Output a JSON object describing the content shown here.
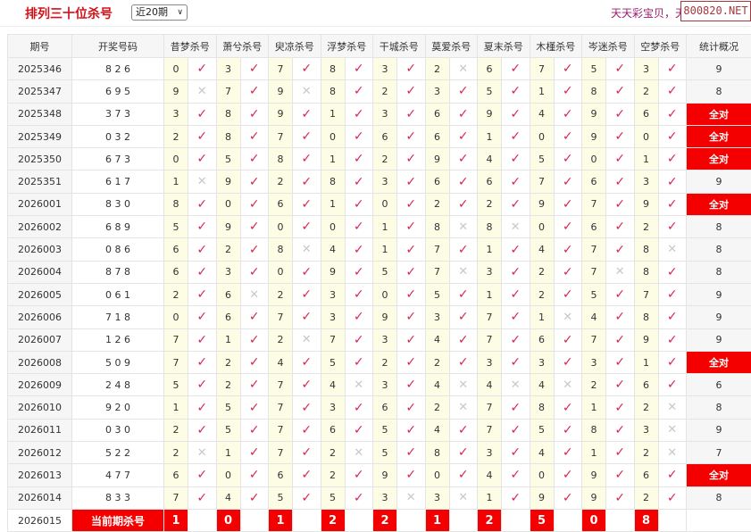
{
  "header": {
    "title": "排列三十位杀号",
    "period_select": "近20期",
    "promo_text": "天天彩宝贝，天天",
    "brand": "800820.NET"
  },
  "table": {
    "col_issue": "期号",
    "col_draw": "开奖号码",
    "col_stat": "统计概况",
    "experts": [
      "昔梦杀号",
      "萧兮杀号",
      "臾凉杀号",
      "浮梦杀号",
      "干城杀号",
      "莫爱杀号",
      "夏末杀号",
      "木槿杀号",
      "岑迷杀号",
      "空梦杀号"
    ],
    "rows": [
      {
        "issue": "2025346",
        "draw": "8 2 6",
        "picks": [
          0,
          3,
          7,
          8,
          3,
          2,
          6,
          7,
          5,
          3
        ],
        "hits": "vvvvvxvvvv",
        "stat": "9"
      },
      {
        "issue": "2025347",
        "draw": "6 9 5",
        "picks": [
          9,
          7,
          9,
          8,
          2,
          3,
          5,
          1,
          8,
          2
        ],
        "hits": "xvxvvvvvvv",
        "stat": "8"
      },
      {
        "issue": "2025348",
        "draw": "3 7 3",
        "picks": [
          3,
          8,
          9,
          1,
          3,
          6,
          9,
          4,
          9,
          6
        ],
        "hits": "vvvvvvvvvv",
        "stat": "全对"
      },
      {
        "issue": "2025349",
        "draw": "0 3 2",
        "picks": [
          2,
          8,
          7,
          0,
          6,
          6,
          1,
          0,
          9,
          0
        ],
        "hits": "vvvvvvvvvv",
        "stat": "全对"
      },
      {
        "issue": "2025350",
        "draw": "6 7 3",
        "picks": [
          0,
          5,
          8,
          1,
          2,
          9,
          4,
          5,
          0,
          1
        ],
        "hits": "vvvvvvvvvv",
        "stat": "全对"
      },
      {
        "issue": "2025351",
        "draw": "6 1 7",
        "picks": [
          1,
          9,
          2,
          8,
          3,
          6,
          6,
          7,
          6,
          3
        ],
        "hits": "xvvvvvvvvv",
        "stat": "9"
      },
      {
        "issue": "2026001",
        "draw": "8 3 0",
        "picks": [
          8,
          0,
          6,
          1,
          0,
          2,
          2,
          9,
          7,
          9
        ],
        "hits": "vvvvvvvvvv",
        "stat": "全对"
      },
      {
        "issue": "2026002",
        "draw": "6 8 9",
        "picks": [
          5,
          9,
          0,
          0,
          1,
          8,
          8,
          0,
          6,
          2
        ],
        "hits": "vvvvvxxvvv",
        "stat": "8"
      },
      {
        "issue": "2026003",
        "draw": "0 8 6",
        "picks": [
          6,
          2,
          8,
          4,
          1,
          7,
          1,
          4,
          7,
          8
        ],
        "hits": "vvxvvvvvvx",
        "stat": "8"
      },
      {
        "issue": "2026004",
        "draw": "8 7 8",
        "picks": [
          6,
          3,
          0,
          9,
          5,
          7,
          3,
          2,
          7,
          8
        ],
        "hits": "vvvvvxvvxv",
        "stat": "8"
      },
      {
        "issue": "2026005",
        "draw": "0 6 1",
        "picks": [
          2,
          6,
          2,
          3,
          0,
          5,
          1,
          2,
          5,
          7
        ],
        "hits": "vxvvvvvvvv",
        "stat": "9"
      },
      {
        "issue": "2026006",
        "draw": "7 1 8",
        "picks": [
          0,
          6,
          7,
          3,
          9,
          3,
          7,
          1,
          4,
          8
        ],
        "hits": "vvvvvvvxvv",
        "stat": "9"
      },
      {
        "issue": "2026007",
        "draw": "1 2 6",
        "picks": [
          7,
          1,
          2,
          7,
          3,
          4,
          7,
          6,
          7,
          9
        ],
        "hits": "vvxvvvvvvv",
        "stat": "9"
      },
      {
        "issue": "2026008",
        "draw": "5 0 9",
        "picks": [
          7,
          2,
          4,
          5,
          2,
          2,
          3,
          3,
          3,
          1
        ],
        "hits": "vvvvvvvvvv",
        "stat": "全对"
      },
      {
        "issue": "2026009",
        "draw": "2 4 8",
        "picks": [
          5,
          2,
          7,
          4,
          3,
          4,
          4,
          4,
          2,
          6
        ],
        "hits": "vvvxvxxxvv",
        "stat": "6"
      },
      {
        "issue": "2026010",
        "draw": "9 2 0",
        "picks": [
          1,
          5,
          7,
          3,
          6,
          2,
          7,
          8,
          1,
          2
        ],
        "hits": "vvvvvxvvvx",
        "stat": "8"
      },
      {
        "issue": "2026011",
        "draw": "0 3 0",
        "picks": [
          2,
          5,
          7,
          6,
          5,
          4,
          7,
          5,
          8,
          3
        ],
        "hits": "vvvvvvvvvx",
        "stat": "9"
      },
      {
        "issue": "2026012",
        "draw": "5 2 2",
        "picks": [
          2,
          1,
          7,
          2,
          5,
          8,
          3,
          4,
          1,
          2
        ],
        "hits": "xvvxvvvvvx",
        "stat": "7"
      },
      {
        "issue": "2026013",
        "draw": "4 7 7",
        "picks": [
          6,
          0,
          6,
          2,
          9,
          0,
          4,
          0,
          9,
          6
        ],
        "hits": "vvvvvvvvvv",
        "stat": "全对"
      },
      {
        "issue": "2026014",
        "draw": "8 3 3",
        "picks": [
          7,
          4,
          5,
          5,
          3,
          3,
          1,
          9,
          9,
          2
        ],
        "hits": "vvvvxxvvvv",
        "stat": "8"
      }
    ],
    "current": {
      "issue": "2026015",
      "label": "当前期杀号",
      "picks": [
        1,
        0,
        1,
        2,
        2,
        1,
        2,
        5,
        0,
        8
      ]
    }
  },
  "colors": {
    "accent": "#f40000",
    "check": "#d9284e",
    "cross": "#c8c8c8",
    "pick_bg": "#fdfde6"
  }
}
